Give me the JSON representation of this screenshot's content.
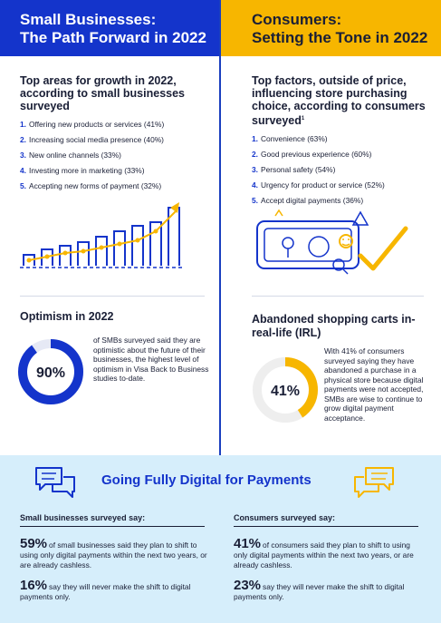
{
  "left": {
    "banner_line1": "Small Businesses:",
    "banner_line2": "The Path Forward in 2022",
    "growth_title": "Top areas for growth in 2022, according to small businesses surveyed",
    "growth_items": [
      {
        "num": "1.",
        "text": "Offering new products or services (41%)"
      },
      {
        "num": "2.",
        "text": "Increasing social media presence (40%)"
      },
      {
        "num": "3.",
        "text": "New online channels (33%)"
      },
      {
        "num": "4.",
        "text": "Investing more in marketing (33%)"
      },
      {
        "num": "5.",
        "text": "Accepting new forms of payment (32%)"
      }
    ],
    "optimism_title": "Optimism in 2022",
    "optimism_value": "90%",
    "optimism_fraction": 0.9,
    "optimism_text": "of SMBs surveyed said they are optimistic about the future of their businesses, the highest level of optimism in Visa Back to Business studies to-date."
  },
  "right": {
    "banner_line1": "Consumers:",
    "banner_line2": "Setting the Tone in 2022",
    "factors_title": "Top factors, outside of price, influencing store purchasing choice, according to consumers surveyed",
    "factors_footnote": "1",
    "factors_items": [
      {
        "num": "1.",
        "text": "Convenience (63%)"
      },
      {
        "num": "2.",
        "text": "Good previous experience (60%)"
      },
      {
        "num": "3.",
        "text": "Personal safety (54%)"
      },
      {
        "num": "4.",
        "text": "Urgency for product or service (52%)"
      },
      {
        "num": "5.",
        "text": "Accept digital payments (36%)"
      }
    ],
    "abandoned_title": "Abandoned shopping carts in-real-life (IRL)",
    "abandoned_value": "41%",
    "abandoned_fraction": 0.41,
    "abandoned_text": "With 41% of consumers surveyed saying they have abandoned a purchase in a physical store because digital payments were not accepted, SMBs are wise to continue to grow digital payment acceptance."
  },
  "digital": {
    "title": "Going Fully Digital for Payments",
    "smb_head": "Small businesses surveyed say:",
    "consumer_head": "Consumers surveyed say:",
    "smb_stat1_big": "59%",
    "smb_stat1_text": "of small businesses said they plan to shift to using only digital payments within the next two years, or are already cashless.",
    "smb_stat2_big": "16%",
    "smb_stat2_text": "say they will never make the shift to digital payments only.",
    "consumer_stat1_big": "41%",
    "consumer_stat1_text": "of consumers said they plan to shift to using only digital payments within the next two years, or are already cashless.",
    "consumer_stat2_big": "23%",
    "consumer_stat2_text": "say they will never make the shift to digital payments only."
  },
  "colors": {
    "blue": "#1434cb",
    "gold": "#f7b600",
    "navy": "#1a1f36",
    "light_blue_bg": "#d6eefb"
  },
  "icons": [
    "growth-chart-icon",
    "payment-device-icon",
    "chat-bubbles-icon"
  ]
}
